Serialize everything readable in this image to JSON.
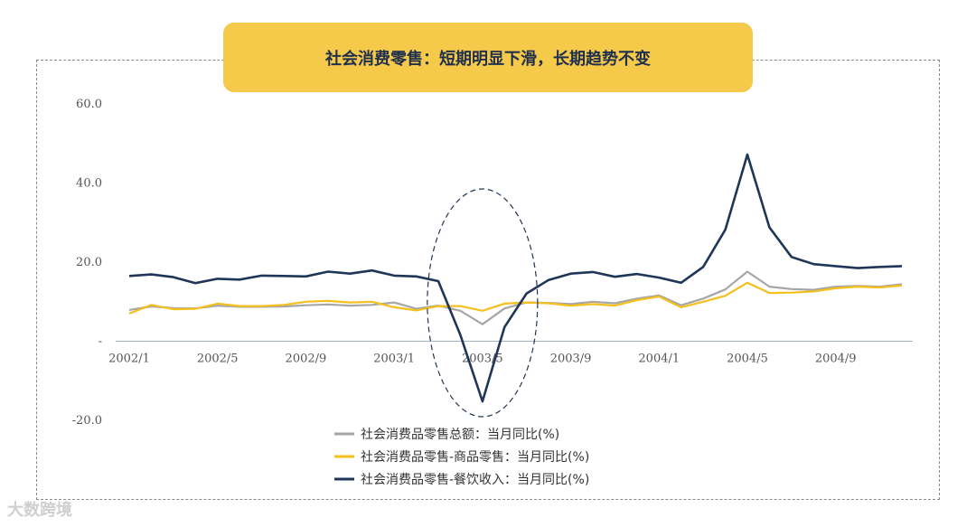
{
  "watermark": "大数跨境",
  "chart_data": {
    "type": "line",
    "title": "社会消费零售：短期明显下滑，长期趋势不变",
    "ylim": [
      -20,
      60
    ],
    "yticks": [
      "60.0",
      "40.0",
      "20.0",
      "-",
      "-20.0"
    ],
    "x_tick_labels": [
      "2002/1",
      "2002/5",
      "2002/9",
      "2003/1",
      "2003/5",
      "2003/9",
      "2004/1",
      "2004/5",
      "2004/9"
    ],
    "x": [
      "2002/1",
      "2002/2",
      "2002/3",
      "2002/4",
      "2002/5",
      "2002/6",
      "2002/7",
      "2002/8",
      "2002/9",
      "2002/10",
      "2002/11",
      "2002/12",
      "2003/1",
      "2003/2",
      "2003/3",
      "2003/4",
      "2003/5",
      "2003/6",
      "2003/7",
      "2003/8",
      "2003/9",
      "2003/10",
      "2003/11",
      "2003/12",
      "2004/1",
      "2004/2",
      "2004/3",
      "2004/4",
      "2004/5",
      "2004/6",
      "2004/7",
      "2004/8",
      "2004/9",
      "2004/10",
      "2004/11",
      "2004/12"
    ],
    "series": [
      {
        "name": "社会消费品零售总额：当月同比(%)",
        "color": "#a6a6a6",
        "values": [
          7.9,
          8.8,
          8.4,
          8.3,
          9.0,
          8.7,
          8.7,
          8.8,
          9.1,
          9.3,
          9.0,
          9.2,
          9.8,
          8.2,
          9.0,
          7.7,
          4.3,
          8.3,
          9.8,
          9.7,
          9.4,
          10.0,
          9.6,
          10.8,
          11.6,
          9.1,
          10.8,
          13.1,
          17.6,
          13.8,
          13.2,
          13.0,
          13.8,
          14.0,
          13.8,
          14.4
        ]
      },
      {
        "name": "社会消费品零售-商品零售：当月同比(%)",
        "color": "#f5bf1d",
        "values": [
          7.0,
          9.2,
          8.1,
          8.2,
          9.5,
          8.9,
          8.9,
          9.2,
          10.0,
          10.2,
          9.8,
          10.0,
          8.6,
          7.8,
          8.9,
          8.9,
          7.7,
          9.5,
          9.8,
          9.6,
          9.0,
          9.4,
          9.0,
          10.4,
          11.3,
          8.6,
          10.0,
          11.5,
          14.8,
          12.2,
          12.3,
          12.6,
          13.4,
          13.8,
          13.6,
          14.1
        ]
      },
      {
        "name": "社会消费品零售-餐饮收入：当月同比(%)",
        "color": "#1f3658",
        "values": [
          16.5,
          16.9,
          16.2,
          14.7,
          15.8,
          15.6,
          16.6,
          16.5,
          16.4,
          17.6,
          17.1,
          17.9,
          16.6,
          16.4,
          15.2,
          1.6,
          -15.2,
          3.6,
          12.1,
          15.5,
          17.1,
          17.5,
          16.3,
          17.0,
          16.1,
          14.8,
          18.8,
          28.2,
          47.2,
          28.8,
          21.3,
          19.5,
          19.0,
          18.5,
          18.8,
          19.0
        ]
      }
    ],
    "legend_position": "bottom-center",
    "grid": false,
    "annotation": "dashed ellipse highlighting 2003/5 dip"
  }
}
